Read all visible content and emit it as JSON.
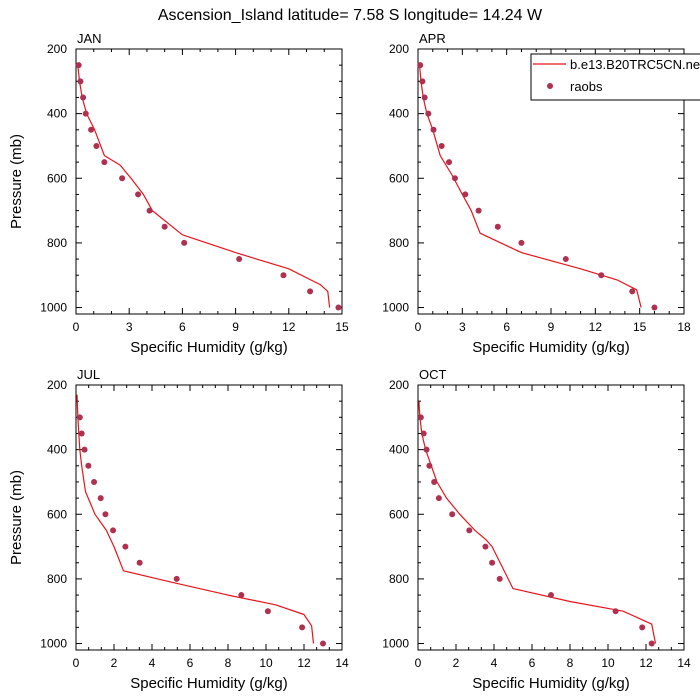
{
  "title": "Ascension_Island  latitude= 7.58 S longitude= 14.24 W",
  "legend": {
    "model_label": "b.e13.B20TRC5CN.ne",
    "obs_label": "raobs"
  },
  "colors": {
    "model_line": "#e8141c",
    "obs_marker": "#b03050",
    "axis": "#000000"
  },
  "chart_data": [
    {
      "type": "line",
      "panel": "JAN",
      "xlabel": "Specific Humidity (g/kg)",
      "ylabel": "Pressure (mb)",
      "xlim": [
        0,
        15
      ],
      "ylim": [
        1020,
        200
      ],
      "xticks": [
        0,
        3,
        6,
        9,
        12,
        15
      ],
      "yticks": [
        200,
        400,
        600,
        800,
        1000
      ],
      "series": [
        {
          "name": "b.e13.B20TRC5CN.ne",
          "kind": "line",
          "x": [
            0.1,
            0.2,
            0.35,
            0.6,
            1.05,
            1.6,
            2.5,
            3.1,
            3.8,
            4.3,
            6.0,
            9.0,
            12.0,
            13.8,
            14.2,
            14.3
          ],
          "y": [
            250,
            300,
            350,
            400,
            450,
            530,
            560,
            600,
            650,
            700,
            775,
            830,
            880,
            930,
            950,
            1000
          ]
        },
        {
          "name": "raobs",
          "kind": "scatter",
          "x": [
            0.15,
            0.25,
            0.4,
            0.55,
            0.85,
            1.15,
            1.6,
            2.6,
            3.5,
            4.15,
            5.0,
            6.1,
            9.2,
            11.7,
            13.2,
            14.8
          ],
          "y": [
            250,
            300,
            350,
            400,
            450,
            500,
            550,
            600,
            650,
            700,
            750,
            800,
            850,
            900,
            950,
            1000
          ]
        }
      ]
    },
    {
      "type": "line",
      "panel": "APR",
      "xlabel": "Specific Humidity (g/kg)",
      "ylabel": "",
      "xlim": [
        0,
        18
      ],
      "ylim": [
        1020,
        200
      ],
      "xticks": [
        0,
        3,
        6,
        9,
        12,
        15,
        18
      ],
      "yticks": [
        200,
        400,
        600,
        800,
        1000
      ],
      "series": [
        {
          "name": "b.e13.B20TRC5CN.ne",
          "kind": "line",
          "x": [
            0.1,
            0.2,
            0.35,
            0.6,
            1.0,
            1.5,
            2.3,
            3.0,
            3.6,
            4.2,
            7.0,
            11.0,
            13.5,
            14.8,
            15.1
          ],
          "y": [
            250,
            300,
            350,
            400,
            450,
            530,
            590,
            650,
            700,
            770,
            830,
            880,
            915,
            945,
            1000
          ]
        },
        {
          "name": "raobs",
          "kind": "scatter",
          "x": [
            0.15,
            0.3,
            0.45,
            0.7,
            1.05,
            1.6,
            2.1,
            2.5,
            3.2,
            4.1,
            5.4,
            7.0,
            10.0,
            12.4,
            14.5,
            16.0
          ],
          "y": [
            250,
            300,
            350,
            400,
            450,
            500,
            550,
            600,
            650,
            700,
            750,
            800,
            850,
            900,
            950,
            1000
          ]
        }
      ]
    },
    {
      "type": "line",
      "panel": "JUL",
      "xlabel": "Specific Humidity (g/kg)",
      "ylabel": "Pressure (mb)",
      "xlim": [
        0,
        14
      ],
      "ylim": [
        1020,
        200
      ],
      "xticks": [
        0,
        2,
        4,
        6,
        8,
        10,
        12,
        14
      ],
      "yticks": [
        200,
        400,
        600,
        800,
        1000
      ],
      "series": [
        {
          "name": "b.e13.B20TRC5CN.ne",
          "kind": "line",
          "x": [
            0.05,
            0.1,
            0.15,
            0.2,
            0.3,
            0.5,
            1.0,
            1.6,
            2.0,
            2.5,
            5.0,
            8.0,
            10.5,
            12.0,
            12.4,
            12.5
          ],
          "y": [
            230,
            300,
            350,
            400,
            450,
            530,
            600,
            650,
            700,
            775,
            810,
            850,
            880,
            910,
            945,
            1000
          ]
        },
        {
          "name": "raobs",
          "kind": "scatter",
          "x": [
            0.2,
            0.3,
            0.45,
            0.65,
            0.95,
            1.3,
            1.55,
            1.95,
            2.6,
            3.35,
            5.3,
            8.7,
            10.1,
            11.9,
            13.0
          ],
          "y": [
            300,
            350,
            400,
            450,
            500,
            550,
            600,
            650,
            700,
            750,
            800,
            850,
            900,
            950,
            1000
          ]
        }
      ]
    },
    {
      "type": "line",
      "panel": "OCT",
      "xlabel": "Specific Humidity (g/kg)",
      "ylabel": "",
      "xlim": [
        0,
        14
      ],
      "ylim": [
        1020,
        200
      ],
      "xticks": [
        0,
        2,
        4,
        6,
        8,
        10,
        12,
        14
      ],
      "yticks": [
        200,
        400,
        600,
        800,
        1000
      ],
      "series": [
        {
          "name": "b.e13.B20TRC5CN.ne",
          "kind": "line",
          "x": [
            0.05,
            0.1,
            0.2,
            0.4,
            0.7,
            1.0,
            1.5,
            2.2,
            3.0,
            3.6,
            3.9,
            5.0,
            8.0,
            10.8,
            12.3,
            12.5
          ],
          "y": [
            250,
            300,
            350,
            400,
            450,
            500,
            550,
            600,
            650,
            680,
            700,
            830,
            870,
            900,
            940,
            1000
          ]
        },
        {
          "name": "raobs",
          "kind": "scatter",
          "x": [
            0.15,
            0.3,
            0.45,
            0.6,
            0.85,
            1.1,
            1.8,
            2.7,
            3.55,
            3.9,
            4.3,
            7.0,
            10.4,
            11.8,
            12.3
          ],
          "y": [
            300,
            350,
            400,
            450,
            500,
            550,
            600,
            650,
            700,
            750,
            800,
            850,
            900,
            950,
            1000
          ]
        }
      ]
    }
  ]
}
